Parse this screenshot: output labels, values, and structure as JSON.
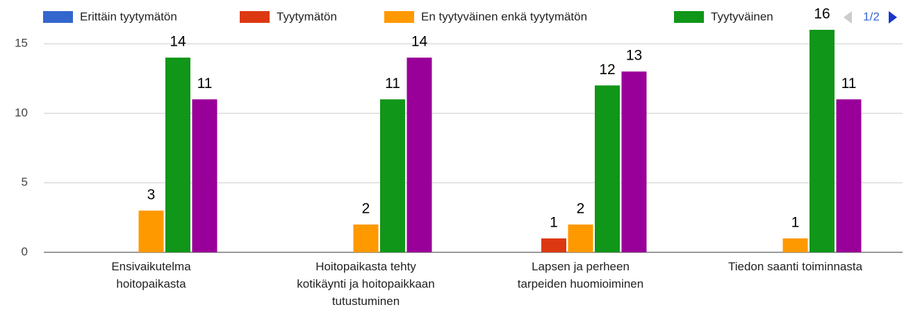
{
  "chart_data": {
    "type": "bar",
    "categories": [
      "Ensivaikutelma\nhoitopaikasta",
      "Hoitopaikasta tehty\nkotikäynti ja hoitopaikkaan\ntutustuminen",
      "Lapsen ja perheen\ntarpeiden huomioiminen",
      "Tiedon saanti toiminnasta"
    ],
    "series": [
      {
        "name": "Erittäin tyytymätön",
        "color": "#3366cc",
        "values": [
          0,
          0,
          0,
          0
        ]
      },
      {
        "name": "Tyytymätön",
        "color": "#dc3912",
        "values": [
          0,
          0,
          1,
          0
        ]
      },
      {
        "name": "En tyytyväinen enkä tyytymätön",
        "color": "#ff9900",
        "values": [
          3,
          2,
          2,
          1
        ]
      },
      {
        "name": "Tyytyväinen",
        "color": "#109618",
        "values": [
          14,
          11,
          12,
          16
        ]
      },
      {
        "color": "#990099",
        "values": [
          11,
          14,
          13,
          11
        ]
      }
    ],
    "ylim": [
      0,
      16
    ],
    "yticks": [
      0,
      5,
      10,
      15
    ],
    "grid": true,
    "legend": "top",
    "legend_page": "1/2"
  }
}
